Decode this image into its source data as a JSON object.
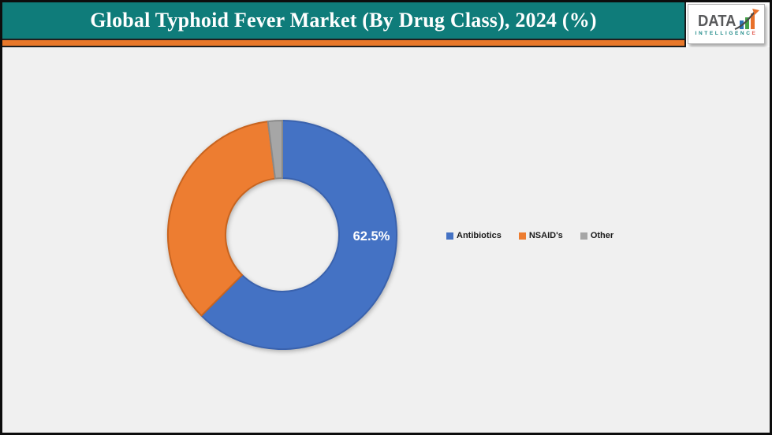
{
  "header": {
    "title": "Global Typhoid Fever Market (By Drug Class), 2024 (%)",
    "banner_color": "#0f7c7a",
    "stripe_color": "#e8782a"
  },
  "logo": {
    "text": "DATA",
    "subtext": "INTELLIGENCE",
    "text_color": "#58595b",
    "subtext_color": "#1f8a88",
    "subtext_last_letter_color": "#e2574c",
    "bar_colors": [
      "#2f74b5",
      "#43a047",
      "#e8702a"
    ],
    "arrow_color": "#4a4a4a",
    "arrowhead_color": "#e8702a"
  },
  "chart_data": {
    "type": "pie",
    "donut": true,
    "title": "Global Typhoid Fever Market (By Drug Class), 2024 (%)",
    "categories": [
      "Antibiotics",
      "NSAID's",
      "Other"
    ],
    "values": [
      62.5,
      35.5,
      2.0
    ],
    "slice_labels": [
      "62.5%",
      "",
      ""
    ],
    "label_color": "#ffffff",
    "colors": [
      "#4472c4",
      "#ed7d31",
      "#a6a6a6"
    ],
    "border_colors": [
      "#3a62ad",
      "#c8641f",
      "#8a8a8a"
    ],
    "start_angle_deg": 0,
    "direction": "clockwise",
    "legend_position": "right",
    "background": "#f0f0f0"
  }
}
